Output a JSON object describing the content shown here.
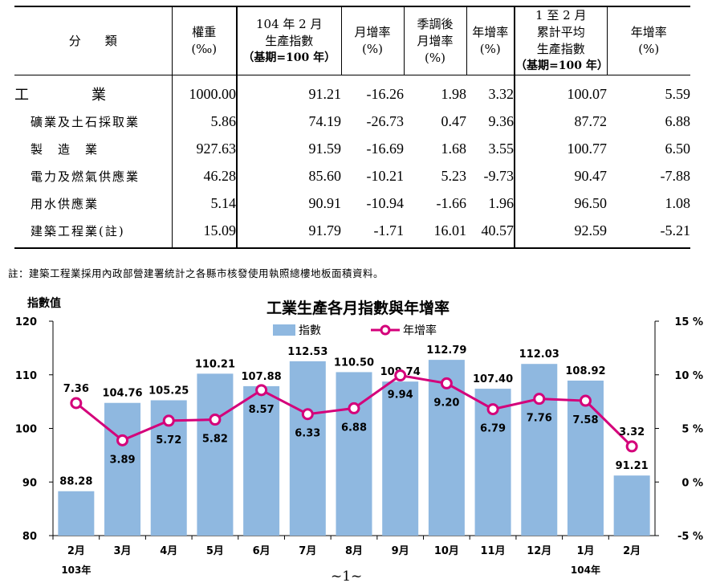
{
  "table": {
    "headers": {
      "category": "分　　類",
      "weight_1": "權重",
      "weight_2": "(‰)",
      "index_1": "104 年 2 月",
      "index_2": "生產指數",
      "index_3": "（基期=100 年）",
      "mom_1": "月增率",
      "mom_2": "(%)",
      "sa_1": "季調後",
      "sa_2": "月增率",
      "sa_3": "(%)",
      "yoy_1": "年增率",
      "yoy_2": "(%)",
      "cum_1": "1 至 2 月",
      "cum_2": "累計平均",
      "cum_3": "生產指數",
      "cum_4": "（基期=100 年）",
      "cumyoy_1": "年增率",
      "cumyoy_2": "(%)"
    },
    "rows": [
      {
        "category_a": "工",
        "category_b": "業",
        "weight": "1000.00",
        "index": "91.21",
        "mom": "-16.26",
        "sa": "1.98",
        "yoy": "3.32",
        "cum": "100.07",
        "cumyoy": "5.59"
      },
      {
        "category": "礦業及土石採取業",
        "weight": "5.86",
        "index": "74.19",
        "mom": "-26.73",
        "sa": "0.47",
        "yoy": "9.36",
        "cum": "87.72",
        "cumyoy": "6.88"
      },
      {
        "category": "製　造　業",
        "weight": "927.63",
        "index": "91.59",
        "mom": "-16.69",
        "sa": "1.68",
        "yoy": "3.55",
        "cum": "100.77",
        "cumyoy": "6.50"
      },
      {
        "category": "電力及燃氣供應業",
        "weight": "46.28",
        "index": "85.60",
        "mom": "-10.21",
        "sa": "5.23",
        "yoy": "-9.73",
        "cum": "90.47",
        "cumyoy": "-7.88"
      },
      {
        "category": "用水供應業",
        "weight": "5.14",
        "index": "90.91",
        "mom": "-10.94",
        "sa": "-1.66",
        "yoy": "1.96",
        "cum": "96.50",
        "cumyoy": "1.08"
      },
      {
        "category": "建築工程業(註)",
        "weight": "15.09",
        "index": "91.79",
        "mom": "-1.71",
        "sa": "16.01",
        "yoy": "40.57",
        "cum": "92.59",
        "cumyoy": "-5.21"
      }
    ]
  },
  "note": "註：建築工程業採用內政部營建署統計之各縣市核發使用執照總樓地板面積資料。",
  "page_number": "~1~",
  "colors": {
    "bar": "#8fb8e0",
    "line": "#d4007a"
  },
  "chart_data": {
    "type": "bar",
    "title": "工業生產各月指數與年增率",
    "ylabel_left": "指數值",
    "categories": [
      "2月",
      "3月",
      "4月",
      "5月",
      "6月",
      "7月",
      "8月",
      "9月",
      "10月",
      "11月",
      "12月",
      "1月",
      "2月"
    ],
    "year_labels": [
      {
        "index": 0,
        "label": "103年"
      },
      {
        "index": 11,
        "label": "104年"
      }
    ],
    "series": [
      {
        "name": "指數",
        "type": "bar",
        "axis": "left",
        "values": [
          88.28,
          104.76,
          105.25,
          110.21,
          107.88,
          112.53,
          110.5,
          108.74,
          112.79,
          107.4,
          112.03,
          108.92,
          91.21
        ]
      },
      {
        "name": "年增率",
        "type": "line",
        "axis": "right",
        "values": [
          7.36,
          3.89,
          5.72,
          5.82,
          8.57,
          6.33,
          6.88,
          9.94,
          9.2,
          6.79,
          7.76,
          7.58,
          3.32
        ]
      }
    ],
    "ylim_left": [
      80,
      120
    ],
    "yticks_left": [
      "80",
      "90",
      "100",
      "110",
      "120"
    ],
    "ylim_right": [
      -5,
      15
    ],
    "yticks_right": [
      "-5 %",
      "0 %",
      "5 %",
      "10 %",
      "15 %"
    ],
    "legend_position": "top-center",
    "grid": false
  }
}
